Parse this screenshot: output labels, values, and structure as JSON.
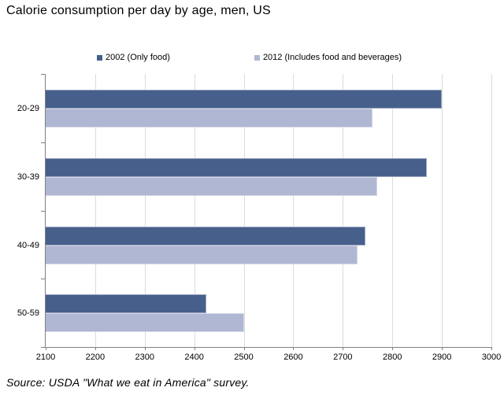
{
  "title": "Calorie consumption per day by age, men, US",
  "source": "Source:  USDA \"What we eat in America\" survey.",
  "colors": {
    "series_2002": "#475f8b",
    "series_2012": "#afb7d2",
    "gridline": "#dcdcdc",
    "axis": "#808080",
    "text": "#000000"
  },
  "chart_data": {
    "type": "bar",
    "orientation": "horizontal",
    "title": "Calorie consumption per day by age, men, US",
    "categories": [
      "20-29",
      "30-39",
      "40-49",
      "50-59"
    ],
    "series": [
      {
        "key": "2002",
        "name": "2002 (Only food)",
        "color": "#475f8b",
        "values": [
          2900,
          2870,
          2745,
          2425
        ]
      },
      {
        "key": "2012",
        "name": "2012 (Includes food and beverages)",
        "color": "#afb7d2",
        "values": [
          2760,
          2770,
          2730,
          2500
        ]
      }
    ],
    "xlim": [
      2100,
      3000
    ],
    "xticks": [
      2100,
      2200,
      2300,
      2400,
      2500,
      2600,
      2700,
      2800,
      2900,
      3000
    ],
    "grid": true,
    "legend_position": "top"
  }
}
